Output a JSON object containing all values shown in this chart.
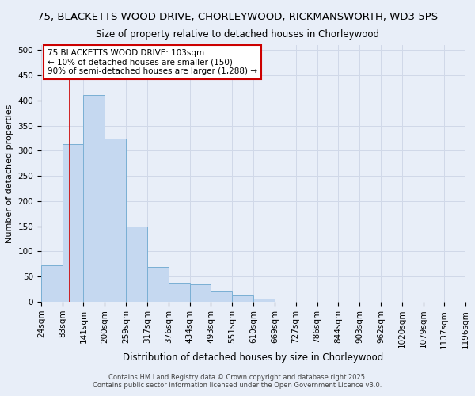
{
  "title": "75, BLACKETTS WOOD DRIVE, CHORLEYWOOD, RICKMANSWORTH, WD3 5PS",
  "subtitle": "Size of property relative to detached houses in Chorleywood",
  "xlabel": "Distribution of detached houses by size in Chorleywood",
  "ylabel": "Number of detached properties",
  "bar_color": "#c5d8f0",
  "bar_edge_color": "#7aafd4",
  "bg_color": "#e8eef8",
  "plot_bg_color": "#e8eef8",
  "grid_color": "#d0d8e8",
  "annotation_box_edge": "#cc0000",
  "vline_color": "#cc0000",
  "vline_x": 103,
  "bins": [
    24,
    83,
    141,
    200,
    259,
    317,
    376,
    434,
    493,
    551,
    610,
    669,
    727,
    786,
    844,
    903,
    962,
    1020,
    1079,
    1137,
    1196
  ],
  "counts": [
    73,
    313,
    410,
    325,
    150,
    70,
    38,
    35,
    20,
    13,
    7,
    0,
    0,
    0,
    0,
    0,
    0,
    0,
    0,
    0
  ],
  "annotation_line1": "75 BLACKETTS WOOD DRIVE: 103sqm",
  "annotation_line2": "← 10% of detached houses are smaller (150)",
  "annotation_line3": "90% of semi-detached houses are larger (1,288) →",
  "footer1": "Contains HM Land Registry data © Crown copyright and database right 2025.",
  "footer2": "Contains public sector information licensed under the Open Government Licence v3.0.",
  "ylim": [
    0,
    510
  ],
  "yticks": [
    0,
    50,
    100,
    150,
    200,
    250,
    300,
    350,
    400,
    450,
    500
  ],
  "title_fontsize": 9.5,
  "subtitle_fontsize": 8.5,
  "xlabel_fontsize": 8.5,
  "ylabel_fontsize": 8.0,
  "tick_fontsize": 7.5,
  "annotation_fontsize": 7.5,
  "footer_fontsize": 6.0
}
